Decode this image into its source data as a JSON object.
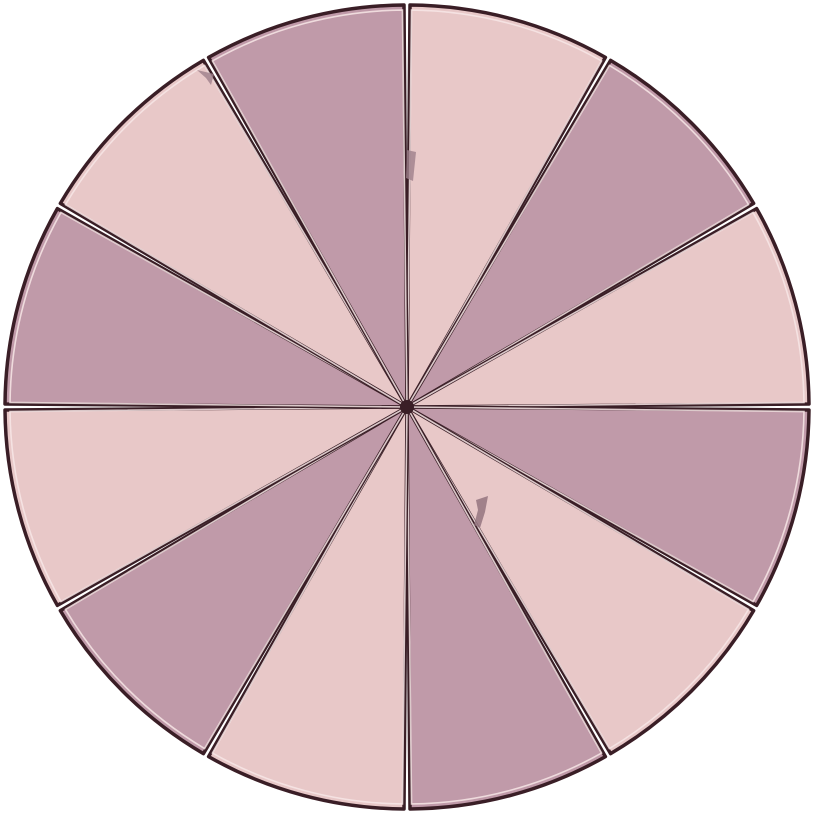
{
  "wheel": {
    "segment_count": 12,
    "start_angle_deg": -90,
    "colors": {
      "dark": "#c09aa9",
      "light": "#e8c8c8",
      "outline": "#3a1e26",
      "highlight": "#f7e6e6"
    },
    "segments": [
      {
        "id": 1,
        "shade": "light"
      },
      {
        "id": 2,
        "shade": "dark"
      },
      {
        "id": 3,
        "shade": "light"
      },
      {
        "id": 4,
        "shade": "dark"
      },
      {
        "id": 5,
        "shade": "light"
      },
      {
        "id": 6,
        "shade": "dark"
      },
      {
        "id": 7,
        "shade": "light"
      },
      {
        "id": 8,
        "shade": "dark"
      },
      {
        "id": 9,
        "shade": "light"
      },
      {
        "id": 10,
        "shade": "dark"
      },
      {
        "id": 11,
        "shade": "light"
      },
      {
        "id": 12,
        "shade": "dark"
      }
    ]
  }
}
